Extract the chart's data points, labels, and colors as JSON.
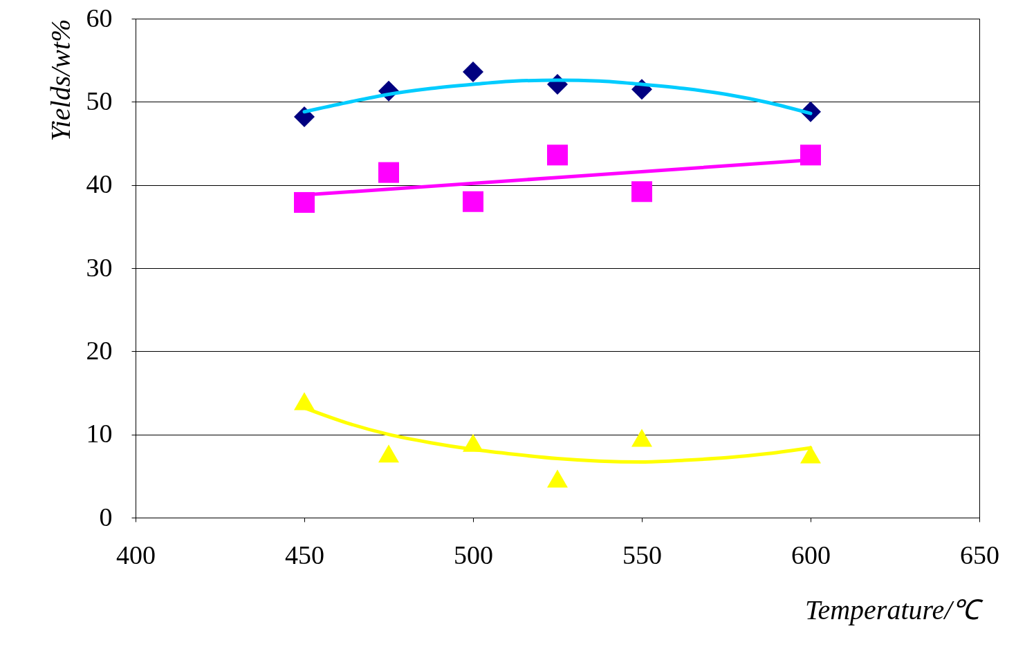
{
  "chart_data": {
    "type": "scatter",
    "xlabel": "Temperature/℃",
    "ylabel": "Yields/wt%",
    "x": [
      450,
      475,
      500,
      525,
      550,
      600
    ],
    "series": [
      {
        "color": "#000080",
        "marker": "diamond",
        "values": [
          48.2,
          51.3,
          53.6,
          52.1,
          51.5,
          48.8
        ]
      },
      {
        "color": "#ff00ff",
        "marker": "square",
        "values": [
          37.9,
          41.5,
          38.0,
          43.6,
          39.2,
          43.6
        ]
      },
      {
        "color": "#ffff00",
        "marker": "triangle",
        "values": [
          14.0,
          7.7,
          9.0,
          4.7,
          9.6,
          7.6
        ]
      },
      {
        "type": "line",
        "color": "#00ccff",
        "x": [
          450,
          462.5,
          475,
          487.5,
          500,
          512.5,
          525,
          537.5,
          550,
          562.5,
          575,
          587.5,
          600
        ],
        "values": [
          48.8,
          49.9,
          50.9,
          51.6,
          52.1,
          52.5,
          52.6,
          52.5,
          52.1,
          51.6,
          50.9,
          49.9,
          48.6
        ]
      },
      {
        "type": "line",
        "color": "#ff00ff",
        "x": [
          450,
          600
        ],
        "values": [
          38.8,
          43.0
        ]
      },
      {
        "type": "line",
        "color": "#ffff00",
        "x": [
          450,
          462.5,
          475,
          487.5,
          500,
          512.5,
          525,
          537.5,
          550,
          562.5,
          575,
          587.5,
          600
        ],
        "values": [
          13.2,
          11.4,
          10.0,
          9.0,
          8.2,
          7.6,
          7.1,
          6.8,
          6.7,
          6.9,
          7.2,
          7.7,
          8.4
        ]
      }
    ],
    "xlim": [
      400,
      650
    ],
    "xticks": [
      400,
      450,
      500,
      550,
      600,
      650
    ],
    "ylim": [
      0,
      60
    ],
    "yticks": [
      0,
      10,
      20,
      30,
      40,
      50,
      60
    ],
    "grid": "y"
  }
}
